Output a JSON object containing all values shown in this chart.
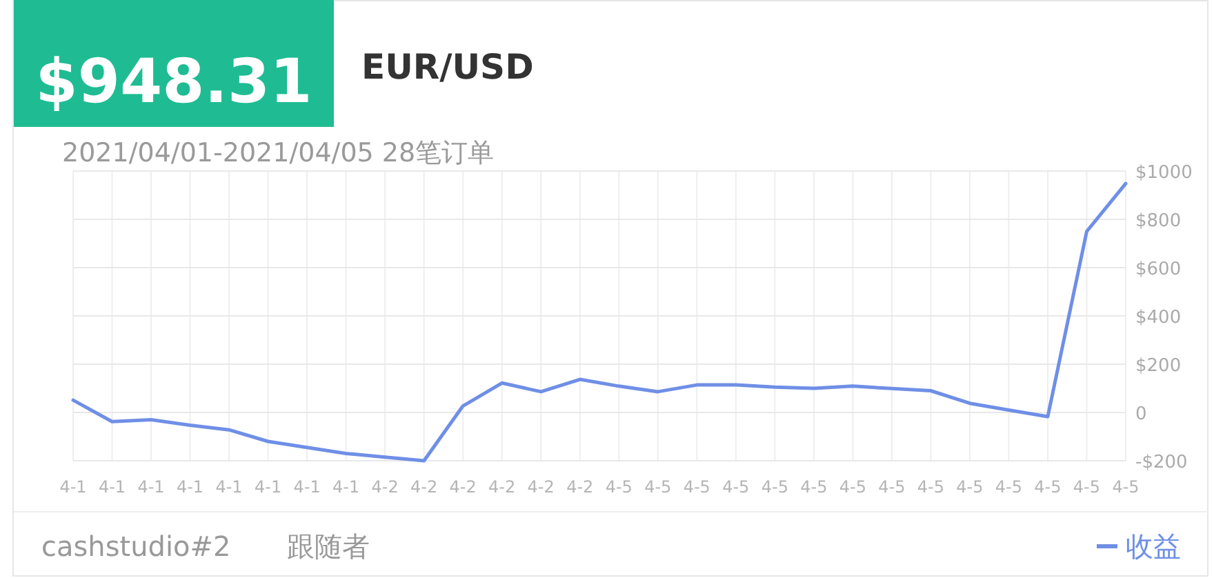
{
  "chart_data": {
    "type": "line",
    "title": "$948.31",
    "subtitle": "EUR/USD",
    "annotations": [
      "2021/04/01-2021/04/05 28笔订单",
      "cashstudio#2",
      "跟随者"
    ],
    "categories": [
      "4-1",
      "4-1",
      "4-1",
      "4-1",
      "4-1",
      "4-1",
      "4-1",
      "4-1",
      "4-2",
      "4-2",
      "4-2",
      "4-2",
      "4-2",
      "4-2",
      "4-5",
      "4-5",
      "4-5",
      "4-5",
      "4-5",
      "4-5",
      "4-5",
      "4-5",
      "4-5",
      "4-5",
      "4-5",
      "4-5",
      "4-5",
      "4-5"
    ],
    "series": [
      {
        "name": "收益",
        "color": "#6f8fe6",
        "values": [
          51,
          -38,
          -30,
          -53,
          -72,
          -120,
          -145,
          -170,
          -185,
          -200,
          27,
          122,
          86,
          137,
          109,
          86,
          114,
          114,
          105,
          100,
          109,
          99,
          90,
          38,
          10,
          -17,
          750,
          948
        ]
      }
    ],
    "ylim": [
      -200,
      1000
    ],
    "yticks": [
      {
        "value": -200,
        "label": "-$200"
      },
      0,
      {
        "value": 200,
        "label": "$200"
      },
      {
        "value": 400,
        "label": "$400"
      },
      {
        "value": 600,
        "label": "$600"
      },
      {
        "value": 800,
        "label": "$800"
      },
      {
        "value": 1000,
        "label": "$1000"
      }
    ],
    "grid": true,
    "legend": "bottom right",
    "marker": "none",
    "line_style": "solid"
  }
}
